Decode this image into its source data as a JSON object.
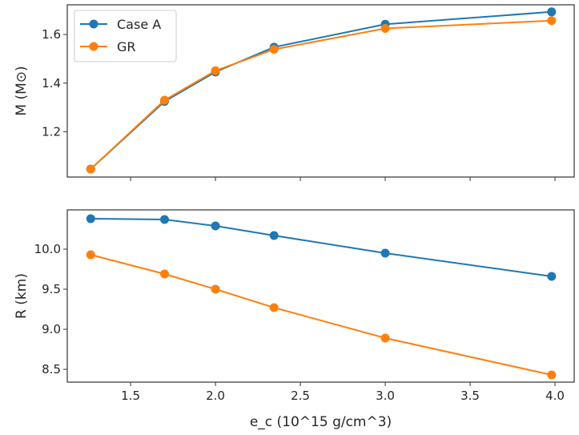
{
  "chart_data": [
    {
      "type": "line",
      "ylabel": "M (M⊙)",
      "xlabel": "",
      "xlim": [
        1.127,
        4.113
      ],
      "ylim": [
        1.014,
        1.722
      ],
      "yticks": [
        1.2,
        1.4,
        1.6
      ],
      "xticks": [
        1.5,
        2.0,
        2.5,
        3.0,
        3.5,
        4.0
      ],
      "show_xticklabels": false,
      "grid": false,
      "legend": "top-left",
      "x": [
        1.265,
        1.7,
        2.0,
        2.345,
        3.0,
        3.98
      ],
      "series": [
        {
          "name": "Case A",
          "color": "#1f77b4",
          "values": [
            1.047,
            1.325,
            1.446,
            1.548,
            1.642,
            1.693
          ]
        },
        {
          "name": "GR",
          "color": "#ff7f0e",
          "values": [
            1.047,
            1.33,
            1.451,
            1.539,
            1.625,
            1.657
          ]
        }
      ]
    },
    {
      "type": "line",
      "ylabel": "R (km)",
      "xlabel": "e_c (10^15 g/cm^3)",
      "xlim": [
        1.127,
        4.113
      ],
      "ylim": [
        8.34,
        10.49
      ],
      "yticks": [
        8.5,
        9.0,
        9.5,
        10.0
      ],
      "xticks": [
        1.5,
        2.0,
        2.5,
        3.0,
        3.5,
        4.0
      ],
      "xticklabels": [
        "1.5",
        "2.0",
        "2.5",
        "3.0",
        "3.5",
        "4.0"
      ],
      "yticklabels": [
        "8.5",
        "9.0",
        "9.5",
        "10.0"
      ],
      "grid": false,
      "x": [
        1.265,
        1.7,
        2.0,
        2.345,
        3.0,
        3.98
      ],
      "series": [
        {
          "name": "Case A",
          "color": "#1f77b4",
          "values": [
            10.38,
            10.37,
            10.29,
            10.17,
            9.95,
            9.66
          ]
        },
        {
          "name": "GR",
          "color": "#ff7f0e",
          "values": [
            9.93,
            9.69,
            9.5,
            9.27,
            8.89,
            8.43
          ]
        }
      ]
    }
  ],
  "labels": {
    "top_yticks": [
      "1.2",
      "1.4",
      "1.6"
    ]
  }
}
